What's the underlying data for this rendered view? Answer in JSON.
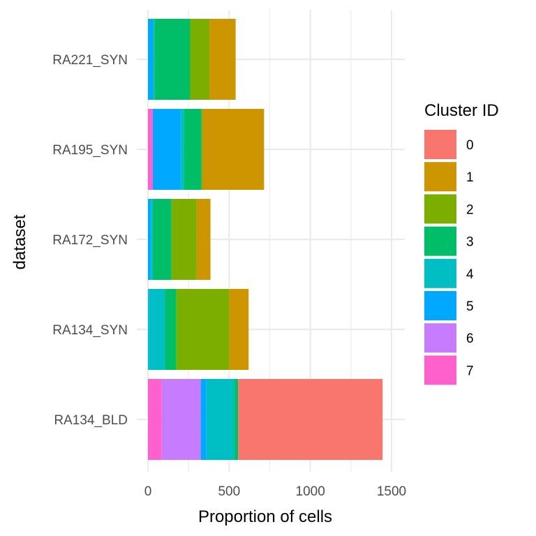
{
  "chart_data": {
    "type": "bar",
    "orientation": "horizontal",
    "stacked": true,
    "title": "",
    "xlabel": "Proportion of cells",
    "ylabel": "dataset",
    "xlim": [
      0,
      1500
    ],
    "x_ticks": [
      0,
      500,
      1000,
      1500
    ],
    "x_tick_labels": [
      "0",
      "500",
      "1000",
      "1500"
    ],
    "grid": true,
    "categories": [
      "RA221_SYN",
      "RA195_SYN",
      "RA172_SYN",
      "RA134_SYN",
      "RA134_BLD"
    ],
    "stack_order": [
      "7",
      "6",
      "5",
      "4",
      "3",
      "2",
      "1",
      "0"
    ],
    "series": [
      {
        "name": "0",
        "color": "#F8766D",
        "values": [
          0,
          0,
          0,
          0,
          890
        ]
      },
      {
        "name": "1",
        "color": "#CD9600",
        "values": [
          160,
          380,
          85,
          120,
          0
        ]
      },
      {
        "name": "2",
        "color": "#7CAE00",
        "values": [
          120,
          5,
          155,
          325,
          0
        ]
      },
      {
        "name": "3",
        "color": "#00BE67",
        "values": [
          220,
          110,
          115,
          70,
          25
        ]
      },
      {
        "name": "4",
        "color": "#00BFC4",
        "values": [
          10,
          15,
          10,
          100,
          170
        ]
      },
      {
        "name": "5",
        "color": "#00A9FF",
        "values": [
          30,
          175,
          20,
          5,
          35
        ]
      },
      {
        "name": "6",
        "color": "#C77CFF",
        "values": [
          0,
          0,
          0,
          0,
          240
        ]
      },
      {
        "name": "7",
        "color": "#FF61CC",
        "values": [
          0,
          30,
          0,
          0,
          85
        ]
      }
    ],
    "legend": {
      "title": "Cluster ID",
      "position": "right",
      "entries": [
        "0",
        "1",
        "2",
        "3",
        "4",
        "5",
        "6",
        "7"
      ]
    }
  }
}
